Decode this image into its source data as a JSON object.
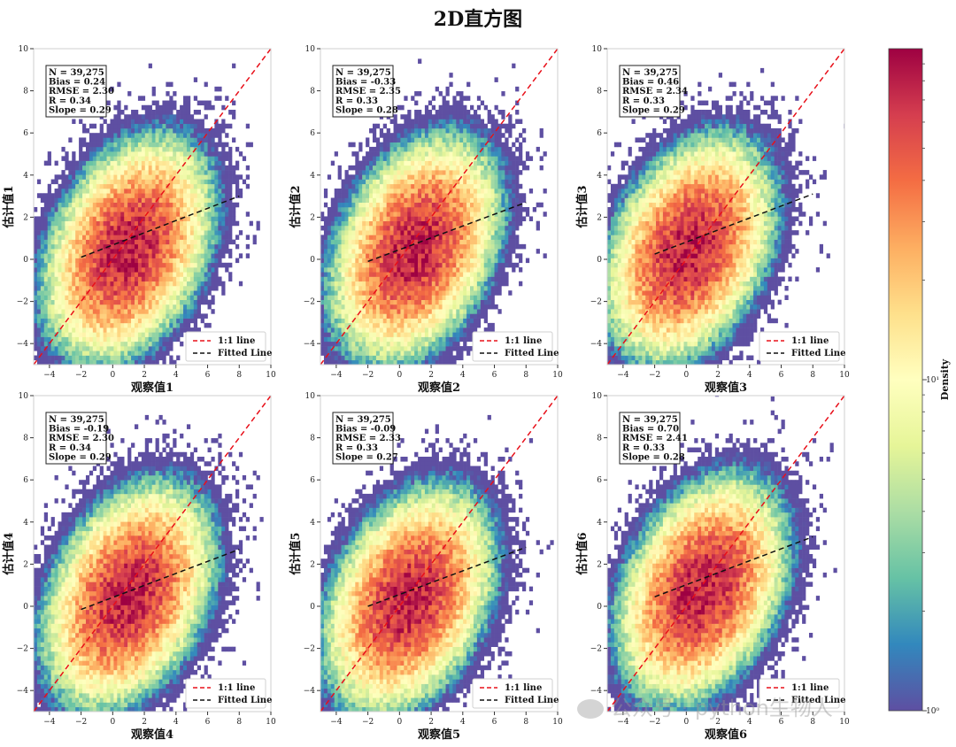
{
  "figure": {
    "title": "2D直方图",
    "watermark": "公众号 · python生物人"
  },
  "colorbar": {
    "label": "Density",
    "scale": "log",
    "range": [
      1,
      100
    ],
    "tick_labels": [
      "10⁰",
      "10¹"
    ],
    "colormap": [
      "#5e4fa2",
      "#3288bd",
      "#66c2a5",
      "#abdda4",
      "#e6f598",
      "#ffffbf",
      "#fee08b",
      "#fdae61",
      "#f46d43",
      "#d53e4f",
      "#9e0142"
    ]
  },
  "chart_data": [
    {
      "type": "heatmap",
      "xlabel": "观察值1",
      "ylabel": "估计值1",
      "xlim": [
        -5,
        10
      ],
      "ylim": [
        -5,
        10
      ],
      "xticks": [
        -4,
        -2,
        0,
        2,
        4,
        6,
        8,
        10
      ],
      "yticks": [
        -4,
        -2,
        0,
        2,
        4,
        6,
        8,
        10
      ],
      "stats": [
        "N = 39,275",
        "Bias = 0.24",
        "RMSE = 2.30",
        "R = 0.34",
        "Slope = 0.29"
      ],
      "one_to_one": [
        [
          -5,
          -5
        ],
        [
          10,
          10
        ]
      ],
      "fitted_line": [
        [
          -2,
          0.1
        ],
        [
          8,
          3.0
        ]
      ],
      "legend": [
        "1:1 line",
        "Fitted Line"
      ],
      "center": [
        1.0,
        0.5
      ]
    },
    {
      "type": "heatmap",
      "xlabel": "观察值2",
      "ylabel": "估计值2",
      "xlim": [
        -5,
        10
      ],
      "ylim": [
        -5,
        10
      ],
      "xticks": [
        -4,
        -2,
        0,
        2,
        4,
        6,
        8,
        10
      ],
      "yticks": [
        -4,
        -2,
        0,
        2,
        4,
        6,
        8,
        10
      ],
      "stats": [
        "N = 39,275",
        "Bias = -0.33",
        "RMSE = 2.35",
        "R = 0.33",
        "Slope = 0.28"
      ],
      "one_to_one": [
        [
          -5,
          -5
        ],
        [
          10,
          10
        ]
      ],
      "fitted_line": [
        [
          -2,
          -0.1
        ],
        [
          8,
          2.7
        ]
      ],
      "legend": [
        "1:1 line",
        "Fitted Line"
      ],
      "center": [
        1.0,
        0.5
      ]
    },
    {
      "type": "heatmap",
      "xlabel": "观察值3",
      "ylabel": "估计值3",
      "xlim": [
        -5,
        10
      ],
      "ylim": [
        -5,
        10
      ],
      "xticks": [
        -4,
        -2,
        0,
        2,
        4,
        6,
        8,
        10
      ],
      "yticks": [
        -4,
        -2,
        0,
        2,
        4,
        6,
        8,
        10
      ],
      "stats": [
        "N = 39,275",
        "Bias = 0.46",
        "RMSE = 2.34",
        "R = 0.33",
        "Slope = 0.29"
      ],
      "one_to_one": [
        [
          -5,
          -5
        ],
        [
          10,
          10
        ]
      ],
      "fitted_line": [
        [
          -2,
          0.25
        ],
        [
          8,
          3.1
        ]
      ],
      "legend": [
        "1:1 line",
        "Fitted Line"
      ],
      "center": [
        0.2,
        0.5
      ]
    },
    {
      "type": "heatmap",
      "xlabel": "观察值4",
      "ylabel": "估计值4",
      "xlim": [
        -5,
        10
      ],
      "ylim": [
        -5,
        10
      ],
      "xticks": [
        -4,
        -2,
        0,
        2,
        4,
        6,
        8,
        10
      ],
      "yticks": [
        -4,
        -2,
        0,
        2,
        4,
        6,
        8,
        10
      ],
      "stats": [
        "N = 39,275",
        "Bias = -0.19",
        "RMSE = 2.30",
        "R = 0.34",
        "Slope = 0.29"
      ],
      "one_to_one": [
        [
          -5,
          -5
        ],
        [
          10,
          10
        ]
      ],
      "fitted_line": [
        [
          -2,
          -0.15
        ],
        [
          8,
          2.7
        ]
      ],
      "legend": [
        "1:1 line",
        "Fitted Line"
      ],
      "center": [
        1.0,
        0.5
      ]
    },
    {
      "type": "heatmap",
      "xlabel": "观察值5",
      "ylabel": "估计值5",
      "xlim": [
        -5,
        10
      ],
      "ylim": [
        -5,
        10
      ],
      "xticks": [
        -4,
        -2,
        0,
        2,
        4,
        6,
        8,
        10
      ],
      "yticks": [
        -4,
        -2,
        0,
        2,
        4,
        6,
        8,
        10
      ],
      "stats": [
        "N = 39,275",
        "Bias = -0.09",
        "RMSE = 2.33",
        "R = 0.33",
        "Slope = 0.27"
      ],
      "one_to_one": [
        [
          -5,
          -5
        ],
        [
          10,
          10
        ]
      ],
      "fitted_line": [
        [
          -2,
          0.0
        ],
        [
          8,
          2.8
        ]
      ],
      "legend": [
        "1:1 line",
        "Fitted Line"
      ],
      "center": [
        0.6,
        0.3
      ]
    },
    {
      "type": "heatmap",
      "xlabel": "观察值6",
      "ylabel": "估计值6",
      "xlim": [
        -5,
        10
      ],
      "ylim": [
        -5,
        10
      ],
      "xticks": [
        -4,
        -2,
        0,
        2,
        4,
        6,
        8,
        10
      ],
      "yticks": [
        -4,
        -2,
        0,
        2,
        4,
        6,
        8,
        10
      ],
      "stats": [
        "N = 39,275",
        "Bias = 0.70",
        "RMSE = 2.41",
        "R = 0.33",
        "Slope = 0.28"
      ],
      "one_to_one": [
        [
          -5,
          -5
        ],
        [
          10,
          10
        ]
      ],
      "fitted_line": [
        [
          -2,
          0.45
        ],
        [
          8,
          3.3
        ]
      ],
      "legend": [
        "1:1 line",
        "Fitted Line"
      ],
      "center": [
        1.0,
        0.8
      ]
    }
  ]
}
